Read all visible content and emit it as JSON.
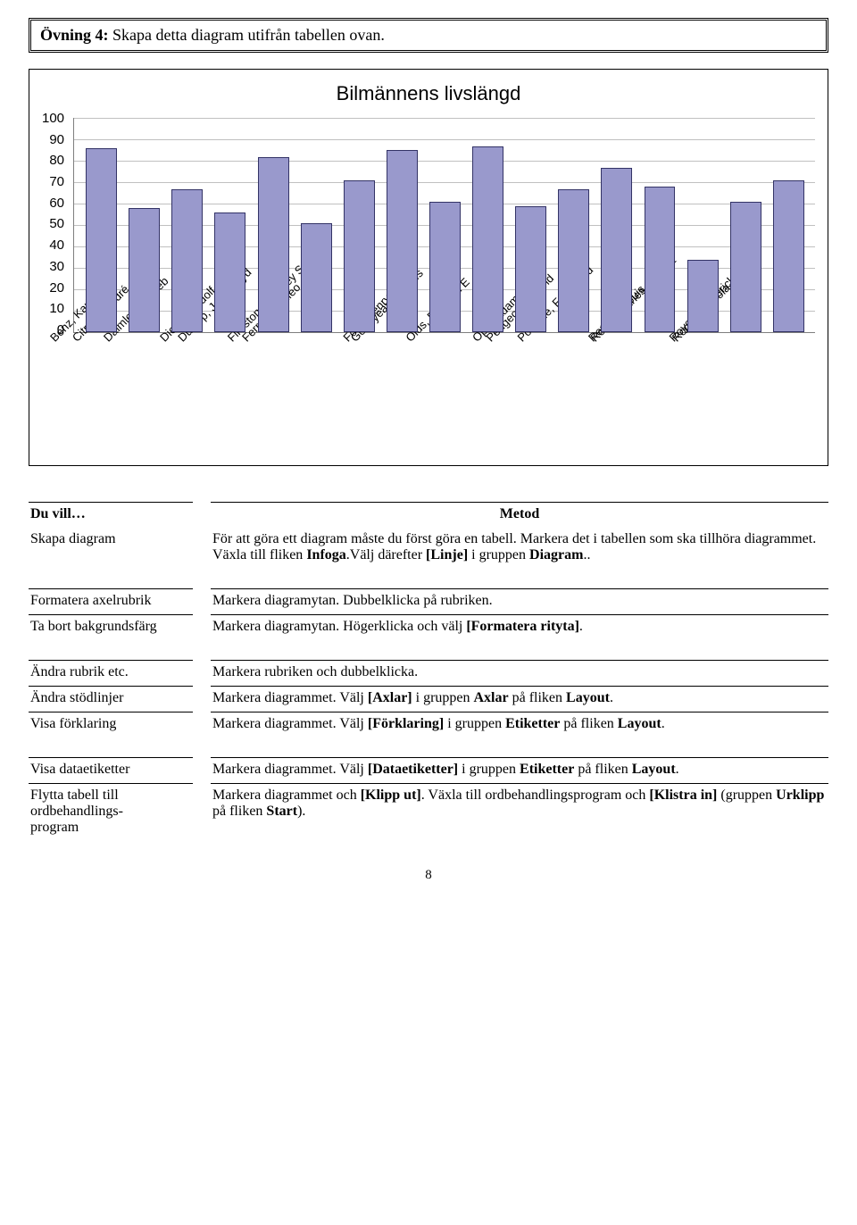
{
  "exercise": {
    "label_bold": "Övning 4:",
    "label_rest": " Skapa detta diagram utifrån tabellen ovan."
  },
  "chart": {
    "title": "Bilmännens livslängd",
    "y_max": 100,
    "y_ticks": [
      "100",
      "90",
      "80",
      "70",
      "60",
      "50",
      "40",
      "30",
      "20",
      "10",
      "0"
    ],
    "bar_color": "#9999cc",
    "bar_border": "#333366",
    "grid_color": "#c0c0c0",
    "bars": [
      {
        "label": "Benz, Karl",
        "value": 85
      },
      {
        "label": "Citroën, André",
        "value": 57
      },
      {
        "label": "Daimler, Gottlieb",
        "value": 66
      },
      {
        "label": "Diesel, Rudolf",
        "value": 55
      },
      {
        "label": "Dunlop, John Boyd",
        "value": 81
      },
      {
        "label": "Ferrari, Galileo",
        "value": 50
      },
      {
        "label": "Firestone, Harvey Samuel",
        "value": 70
      },
      {
        "label": "Ford, Henry",
        "value": 84
      },
      {
        "label": "Goodyear, Charles",
        "value": 60
      },
      {
        "label": "Olds, Ramson E",
        "value": 86
      },
      {
        "label": "Opel, Adam",
        "value": 58
      },
      {
        "label": "Peugeot, Armand",
        "value": 66
      },
      {
        "label": "Porsche, Ferdinand",
        "value": 76
      },
      {
        "label": "Renault, Louis",
        "value": 67
      },
      {
        "label": "Rolls, Charles Stewart",
        "value": 33
      },
      {
        "label": "Romeo, Nicola",
        "value": 60
      },
      {
        "label": "Royce, Frederick Henry",
        "value": 70
      }
    ]
  },
  "table": {
    "header_left": "Du vill…",
    "header_right": "Metod",
    "rows": [
      {
        "left": "Skapa diagram",
        "right": "För att göra ett diagram måste du först göra en tabell. Markera det i tabellen som ska tillhöra diagrammet. Växla till fliken <b>Infoga</b>.Välj därefter <b>[Linje]</b> i gruppen <b>Diagram</b>.."
      },
      {
        "left": "Formatera axelrubrik",
        "right": "Markera diagramytan. Dubbelklicka på rubriken."
      },
      {
        "left": "Ta bort bakgrundsfärg",
        "right": "Markera diagramytan. Högerklicka och välj <b>[Formatera rityta]</b>."
      },
      {
        "left": "Ändra rubrik etc.",
        "right": "Markera rubriken och dubbelklicka."
      },
      {
        "left": "Ändra stödlinjer",
        "right": "Markera diagrammet. Välj <b>[Axlar]</b> i gruppen <b>Axlar</b> på fliken <b>Layout</b>."
      },
      {
        "left": "Visa förklaring",
        "right": "Markera diagrammet. Välj <b>[Förklaring]</b> i gruppen <b>Etiketter</b> på fliken <b>Layout</b>."
      },
      {
        "left": "Visa dataetiketter",
        "right": "Markera diagrammet. Välj <b>[Dataetiketter]</b> i gruppen <b>Etiketter</b> på fliken <b>Layout</b>."
      },
      {
        "left": "Flytta tabell till ordbehandlings-<br>program",
        "right": "Markera diagrammet och <b>[Klipp ut]</b>. Växla till ordbehandlingsprogram och <b>[Klistra in]</b> (gruppen <b>Urklipp</b> på fliken <b>Start</b>)."
      }
    ]
  },
  "page_number": "8"
}
